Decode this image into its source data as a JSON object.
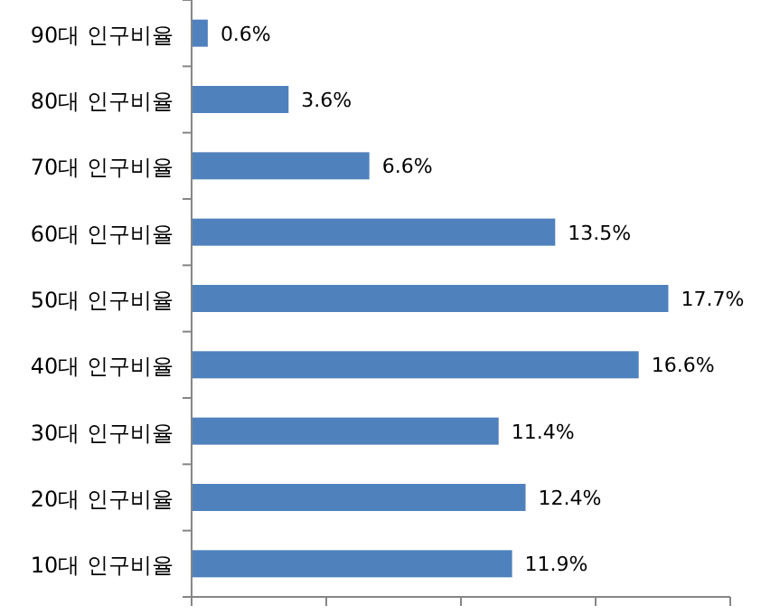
{
  "chart_data": {
    "type": "bar",
    "orientation": "horizontal",
    "categories": [
      "90대 인구비율",
      "80대 인구비율",
      "70대 인구비율",
      "60대 인구비율",
      "50대 인구비율",
      "40대 인구비율",
      "30대 인구비율",
      "20대 인구비율",
      "10대 인구비율"
    ],
    "values": [
      0.6,
      3.6,
      6.6,
      13.5,
      17.7,
      16.6,
      11.4,
      12.4,
      11.9
    ],
    "value_labels": [
      "0.6%",
      "3.6%",
      "6.6%",
      "13.5%",
      "17.7%",
      "16.6%",
      "11.4%",
      "12.4%",
      "11.9%"
    ],
    "color": "#4f81bd",
    "xlim": [
      0,
      20
    ],
    "xticks": [
      {
        "value": 0,
        "label": null
      },
      {
        "value": 5,
        "label": null
      },
      {
        "value": 10,
        "label": null
      },
      {
        "value": 15,
        "label": null
      },
      {
        "value": 20,
        "label": null
      }
    ],
    "tick_labels": "y"
  }
}
